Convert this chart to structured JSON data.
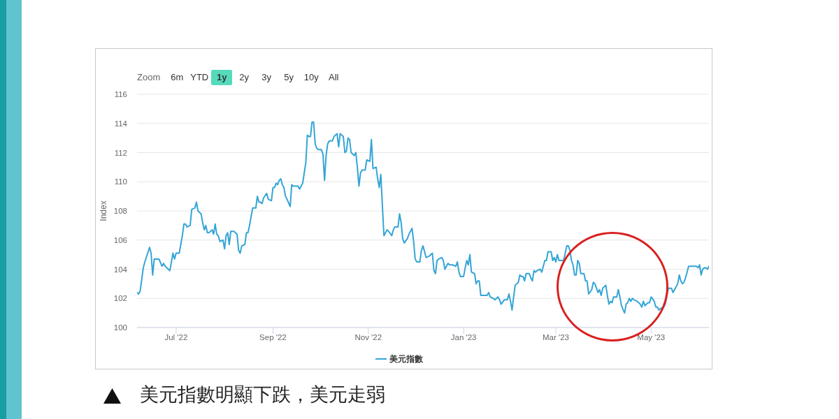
{
  "chart_data": {
    "type": "line",
    "ylabel": "Index",
    "annotations": [
      "Zoom",
      "6m",
      "YTD",
      "1y",
      "2y",
      "3y",
      "5y",
      "10y",
      "All",
      "美元指數明顯下跌，美元走弱"
    ],
    "x": [
      "2022-06-06",
      "2022-06-07",
      "2022-06-08",
      "2022-06-10",
      "2022-06-11",
      "2022-06-14",
      "2022-06-15",
      "2022-06-16",
      "2022-06-17",
      "2022-06-20",
      "2022-06-22",
      "2022-06-23",
      "2022-06-24",
      "2022-06-27",
      "2022-06-29",
      "2022-06-30",
      "2022-07-01",
      "2022-07-03",
      "2022-07-05",
      "2022-07-06",
      "2022-07-07",
      "2022-07-08",
      "2022-07-10",
      "2022-07-11",
      "2022-07-13",
      "2022-07-14",
      "2022-07-15",
      "2022-07-17",
      "2022-07-18",
      "2022-07-19",
      "2022-07-20",
      "2022-07-21",
      "2022-07-22",
      "2022-07-24",
      "2022-07-25",
      "2022-07-26",
      "2022-07-27",
      "2022-07-28",
      "2022-07-29",
      "2022-07-31",
      "2022-08-01",
      "2022-08-02",
      "2022-08-03",
      "2022-08-04",
      "2022-08-05",
      "2022-08-07",
      "2022-08-09",
      "2022-08-10",
      "2022-08-11",
      "2022-08-12",
      "2022-08-14",
      "2022-08-15",
      "2022-08-16",
      "2022-08-17",
      "2022-08-19",
      "2022-08-21",
      "2022-08-22",
      "2022-08-23",
      "2022-08-24",
      "2022-08-25",
      "2022-08-26",
      "2022-08-28",
      "2022-08-29",
      "2022-08-31",
      "2022-09-01",
      "2022-09-02",
      "2022-09-03",
      "2022-09-04",
      "2022-09-05",
      "2022-09-06",
      "2022-09-07",
      "2022-09-08",
      "2022-09-09",
      "2022-09-10",
      "2022-09-12",
      "2022-09-13",
      "2022-09-14",
      "2022-09-15",
      "2022-09-17",
      "2022-09-18",
      "2022-09-20",
      "2022-09-21",
      "2022-09-22",
      "2022-09-23",
      "2022-09-24",
      "2022-09-25",
      "2022-09-26",
      "2022-09-27",
      "2022-09-28",
      "2022-09-29",
      "2022-09-30",
      "2022-10-02",
      "2022-10-03",
      "2022-10-04",
      "2022-10-05",
      "2022-10-06",
      "2022-10-07",
      "2022-10-09",
      "2022-10-10",
      "2022-10-12",
      "2022-10-13",
      "2022-10-14",
      "2022-10-16",
      "2022-10-17",
      "2022-10-18",
      "2022-10-19",
      "2022-10-20",
      "2022-10-21",
      "2022-10-22",
      "2022-10-23",
      "2022-10-24",
      "2022-10-25",
      "2022-10-26",
      "2022-10-27",
      "2022-10-28",
      "2022-10-30",
      "2022-10-31",
      "2022-11-02",
      "2022-11-03",
      "2022-11-04",
      "2022-11-06",
      "2022-11-07",
      "2022-11-08",
      "2022-11-09",
      "2022-11-11",
      "2022-11-13",
      "2022-11-14",
      "2022-11-16",
      "2022-11-17",
      "2022-11-18",
      "2022-11-20",
      "2022-11-21",
      "2022-11-22",
      "2022-11-23",
      "2022-11-24",
      "2022-11-26",
      "2022-11-27",
      "2022-11-29",
      "2022-11-30",
      "2022-12-01",
      "2022-12-02",
      "2022-12-04",
      "2022-12-05",
      "2022-12-06",
      "2022-12-08",
      "2022-12-10",
      "2022-12-12",
      "2022-12-13",
      "2022-12-14",
      "2022-12-15",
      "2022-12-16",
      "2022-12-18",
      "2022-12-19",
      "2022-12-20",
      "2022-12-22",
      "2022-12-23",
      "2022-12-25",
      "2022-12-27",
      "2022-12-28",
      "2022-12-29",
      "2022-12-30",
      "2023-01-01",
      "2023-01-02",
      "2023-01-03",
      "2023-01-04",
      "2023-01-05",
      "2023-01-06",
      "2023-01-08",
      "2023-01-09",
      "2023-01-10",
      "2023-01-11",
      "2023-01-12",
      "2023-01-14",
      "2023-01-16",
      "2023-01-17",
      "2023-01-18",
      "2023-01-20",
      "2023-01-21",
      "2023-01-23",
      "2023-01-24",
      "2023-01-25",
      "2023-01-27",
      "2023-01-29",
      "2023-01-30",
      "2023-01-31",
      "2023-02-01",
      "2023-02-02",
      "2023-02-03",
      "2023-02-04",
      "2023-02-05",
      "2023-02-06",
      "2023-02-07",
      "2023-02-08",
      "2023-02-09",
      "2023-02-10",
      "2023-02-12",
      "2023-02-13",
      "2023-02-14",
      "2023-02-15",
      "2023-02-16",
      "2023-02-17",
      "2023-02-19",
      "2023-02-20",
      "2023-02-21",
      "2023-02-22",
      "2023-02-23",
      "2023-02-24",
      "2023-02-26",
      "2023-02-27",
      "2023-02-28",
      "2023-03-01",
      "2023-03-02",
      "2023-03-03",
      "2023-03-04",
      "2023-03-06",
      "2023-03-07",
      "2023-03-08",
      "2023-03-09",
      "2023-03-10",
      "2023-03-11",
      "2023-03-12",
      "2023-03-13",
      "2023-03-14",
      "2023-03-15",
      "2023-03-16",
      "2023-03-17",
      "2023-03-18",
      "2023-03-19",
      "2023-03-20",
      "2023-03-21",
      "2023-03-22",
      "2023-03-24",
      "2023-03-25",
      "2023-03-26",
      "2023-03-28",
      "2023-03-29",
      "2023-03-30",
      "2023-03-31",
      "2023-04-02",
      "2023-04-03",
      "2023-04-04",
      "2023-04-05",
      "2023-04-06",
      "2023-04-07",
      "2023-04-09",
      "2023-04-10",
      "2023-04-11",
      "2023-04-12",
      "2023-04-14",
      "2023-04-15",
      "2023-04-16",
      "2023-04-17",
      "2023-04-18",
      "2023-04-19",
      "2023-04-20",
      "2023-04-22",
      "2023-04-23",
      "2023-04-24",
      "2023-04-25",
      "2023-04-26",
      "2023-04-27",
      "2023-04-28",
      "2023-04-29",
      "2023-04-30",
      "2023-05-01",
      "2023-05-03",
      "2023-05-04",
      "2023-05-05",
      "2023-05-06",
      "2023-05-07",
      "2023-05-09",
      "2023-05-10",
      "2023-05-12",
      "2023-05-13",
      "2023-05-14",
      "2023-05-15",
      "2023-05-16",
      "2023-05-18",
      "2023-05-19",
      "2023-05-20",
      "2023-05-21",
      "2023-05-22",
      "2023-05-23",
      "2023-05-24",
      "2023-05-25",
      "2023-05-27",
      "2023-05-29",
      "2023-05-30",
      "2023-05-31",
      "2023-06-01",
      "2023-06-02",
      "2023-06-03",
      "2023-06-04",
      "2023-06-05",
      "2023-06-06",
      "2023-06-07"
    ],
    "series": [
      {
        "name": "美元指數",
        "color": "#34a5d6",
        "values": [
          102.4,
          102.3,
          102.5,
          104.1,
          104.5,
          105.5,
          105.1,
          103.6,
          104.7,
          104.7,
          104.2,
          104.4,
          104.2,
          103.9,
          105.1,
          104.7,
          105.1,
          105.1,
          106.3,
          107.1,
          107.1,
          106.9,
          107.0,
          108.1,
          108.2,
          108.6,
          108.0,
          107.8,
          107.2,
          106.7,
          107.0,
          106.5,
          106.5,
          106.7,
          106.4,
          107.1,
          106.4,
          106.3,
          105.9,
          106.0,
          105.4,
          106.3,
          106.5,
          105.7,
          106.6,
          106.6,
          106.4,
          105.3,
          105.1,
          105.6,
          105.7,
          106.5,
          106.5,
          107.0,
          108.2,
          108.2,
          109.0,
          108.6,
          108.6,
          108.5,
          108.9,
          109.2,
          108.8,
          108.7,
          109.6,
          109.6,
          109.9,
          109.8,
          110.1,
          110.2,
          109.8,
          109.6,
          109.0,
          108.8,
          108.3,
          109.8,
          109.7,
          109.7,
          109.7,
          109.5,
          109.9,
          110.6,
          111.3,
          113.2,
          113.1,
          113.1,
          114.1,
          114.1,
          112.6,
          112.3,
          112.2,
          112.2,
          111.9,
          110.1,
          111.8,
          112.6,
          112.8,
          112.8,
          113.1,
          113.3,
          112.4,
          113.3,
          113.1,
          112.0,
          112.1,
          113.0,
          112.9,
          112.0,
          111.9,
          111.8,
          112.0,
          111.0,
          109.7,
          110.6,
          110.8,
          110.8,
          111.5,
          111.4,
          112.9,
          110.9,
          111.0,
          110.2,
          109.6,
          110.5,
          106.3,
          106.7,
          106.6,
          106.3,
          106.7,
          106.9,
          106.9,
          107.8,
          107.2,
          106.1,
          105.8,
          106.1,
          106.4,
          106.8,
          105.9,
          104.7,
          104.5,
          104.5,
          105.3,
          105.6,
          104.8,
          104.9,
          105.1,
          103.9,
          103.7,
          104.6,
          104.7,
          104.8,
          104.6,
          104.0,
          104.4,
          104.3,
          104.3,
          104.2,
          104.5,
          103.8,
          103.5,
          103.5,
          104.1,
          104.6,
          104.3,
          105.0,
          103.8,
          103.7,
          103.0,
          103.2,
          103.2,
          102.2,
          102.2,
          102.2,
          102.4,
          102.1,
          102.0,
          101.9,
          102.1,
          101.9,
          101.6,
          101.9,
          101.9,
          102.3,
          101.8,
          101.2,
          102.1,
          102.9,
          103.0,
          103.1,
          103.6,
          103.5,
          103.5,
          103.2,
          103.7,
          103.7,
          103.4,
          103.2,
          103.9,
          103.8,
          103.9,
          104.0,
          103.8,
          104.2,
          104.6,
          104.6,
          105.2,
          105.2,
          104.6,
          104.8,
          104.5,
          105.0,
          104.6,
          104.6,
          104.6,
          105.1,
          105.6,
          105.6,
          105.3,
          104.6,
          104.3,
          103.6,
          103.6,
          104.6,
          104.4,
          103.7,
          103.7,
          103.7,
          103.2,
          103.2,
          102.3,
          102.6,
          103.1,
          103.0,
          102.4,
          102.6,
          102.2,
          102.7,
          102.9,
          102.2,
          101.6,
          101.8,
          101.7,
          102.1,
          102.1,
          102.6,
          102.1,
          101.5,
          101.0,
          101.6,
          101.7,
          102.0,
          101.8,
          102.0,
          101.9,
          101.8,
          101.7,
          101.6,
          101.4,
          101.8,
          101.5,
          101.6,
          101.7,
          101.7,
          102.1,
          101.8,
          101.4,
          101.4,
          101.2,
          101.3,
          101.4,
          101.6,
          102.7,
          102.7,
          102.7,
          102.4,
          102.6,
          103.0,
          103.6,
          103.2,
          103.0,
          103.1,
          103.4,
          103.8,
          104.2,
          104.2,
          104.2,
          104.2,
          104.1,
          104.3,
          103.6,
          104.0,
          104.1,
          104.1,
          104.0,
          104.2
        ]
      }
    ],
    "xlim": [
      "2022-06-06",
      "2023-06-07"
    ],
    "xticks": [
      {
        "value": "2022-07-01",
        "label": "Jul '22"
      },
      {
        "value": "2022-09-01",
        "label": "Sep '22"
      },
      {
        "value": "2022-11-01",
        "label": "Nov '22"
      },
      {
        "value": "2023-01-01",
        "label": "Jan '23"
      },
      {
        "value": "2023-03-01",
        "label": "Mar '23"
      },
      {
        "value": "2023-05-01",
        "label": "May '23"
      }
    ],
    "ylim": [
      100,
      116
    ],
    "yticks": [
      100,
      102,
      104,
      106,
      108,
      110,
      112,
      114,
      116
    ],
    "grid": "y",
    "legend": "bottom",
    "marker": "none",
    "line_style": "solid"
  }
}
